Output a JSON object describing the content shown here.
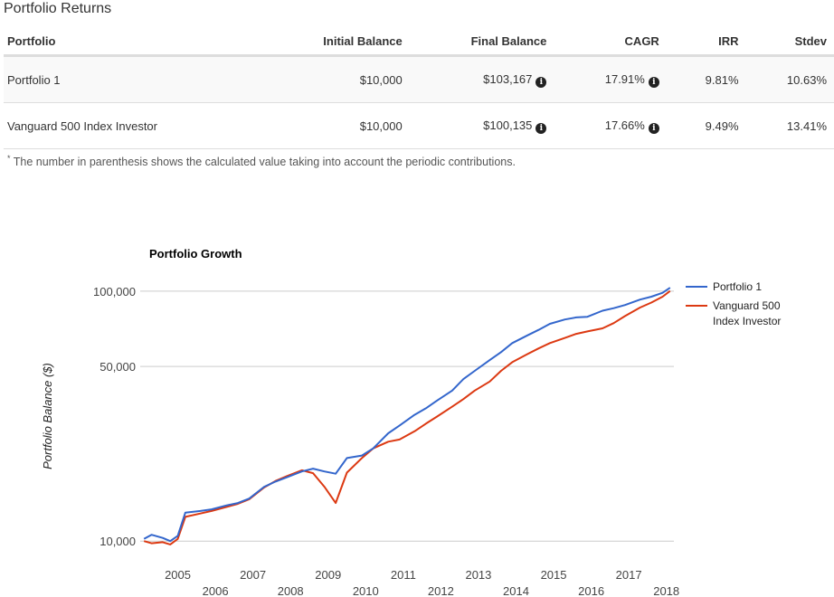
{
  "section_title": "Portfolio Returns",
  "table": {
    "headers": [
      "Portfolio",
      "Initial Balance",
      "Final Balance",
      "CAGR",
      "IRR",
      "Stdev"
    ],
    "rows": [
      {
        "portfolio": "Portfolio 1",
        "initial": "$10,000",
        "final": "$103,167",
        "cagr": "17.91%",
        "irr": "9.81%",
        "stdev": "10.63%"
      },
      {
        "portfolio": "Vanguard 500 Index Investor",
        "initial": "$10,000",
        "final": "$100,135",
        "cagr": "17.66%",
        "irr": "9.49%",
        "stdev": "13.41%"
      }
    ],
    "info_icon": "info-circle-icon"
  },
  "footnote": {
    "marker": "*",
    "text": "The number in parenthesis shows the calculated value taking into account the periodic contributions."
  },
  "chart_data": {
    "type": "line",
    "title": "Portfolio Growth",
    "ylabel": "Portfolio Balance ($)",
    "xlabel": "",
    "y_scale": "log",
    "ylim": [
      8000,
      120000
    ],
    "yticks": [
      10000,
      50000,
      100000
    ],
    "ytick_labels": [
      "10,000",
      "50,000",
      "100,000"
    ],
    "xlim": [
      2004.0,
      2018.2
    ],
    "xticks": [
      2005,
      2006,
      2007,
      2008,
      2009,
      2010,
      2011,
      2012,
      2013,
      2014,
      2015,
      2016,
      2017,
      2018
    ],
    "xtick_labels": [
      "2005",
      "2006",
      "2007",
      "2008",
      "2009",
      "2010",
      "2011",
      "2012",
      "2013",
      "2014",
      "2015",
      "2016",
      "2017",
      "2018"
    ],
    "legend_position": "right",
    "series": [
      {
        "name": "Portfolio 1",
        "color": "#3366cc",
        "x": [
          2004.1,
          2004.3,
          2004.6,
          2004.8,
          2005.0,
          2005.2,
          2005.6,
          2005.9,
          2006.3,
          2006.6,
          2006.9,
          2007.3,
          2007.6,
          2007.9,
          2008.3,
          2008.6,
          2008.9,
          2009.2,
          2009.5,
          2009.9,
          2010.2,
          2010.6,
          2010.9,
          2011.3,
          2011.6,
          2011.9,
          2012.3,
          2012.6,
          2012.9,
          2013.3,
          2013.6,
          2013.9,
          2014.3,
          2014.6,
          2014.9,
          2015.3,
          2015.6,
          2015.9,
          2016.3,
          2016.6,
          2016.9,
          2017.3,
          2017.6,
          2017.9,
          2018.1
        ],
        "y": [
          10200,
          10600,
          10300,
          10000,
          10500,
          13000,
          13200,
          13400,
          13900,
          14200,
          14800,
          16500,
          17300,
          18000,
          19000,
          19500,
          19000,
          18600,
          21500,
          22000,
          23500,
          27000,
          29000,
          32000,
          34000,
          36500,
          40000,
          44500,
          48000,
          53000,
          57000,
          62000,
          66500,
          70000,
          74000,
          77000,
          78500,
          79000,
          83500,
          85500,
          88000,
          92500,
          95000,
          98500,
          103167
        ]
      },
      {
        "name": "Vanguard 500 Index Investor",
        "color": "#dc3912",
        "x": [
          2004.1,
          2004.3,
          2004.6,
          2004.8,
          2005.0,
          2005.2,
          2005.6,
          2005.9,
          2006.3,
          2006.6,
          2006.9,
          2007.3,
          2007.6,
          2007.9,
          2008.3,
          2008.6,
          2008.9,
          2009.2,
          2009.5,
          2009.9,
          2010.2,
          2010.6,
          2010.9,
          2011.3,
          2011.6,
          2011.9,
          2012.3,
          2012.6,
          2012.9,
          2013.3,
          2013.6,
          2013.9,
          2014.3,
          2014.6,
          2014.9,
          2015.3,
          2015.6,
          2015.9,
          2016.3,
          2016.6,
          2016.9,
          2017.3,
          2017.6,
          2017.9,
          2018.1
        ],
        "y": [
          10000,
          9800,
          9900,
          9700,
          10200,
          12500,
          12900,
          13200,
          13700,
          14100,
          14700,
          16400,
          17400,
          18200,
          19200,
          18700,
          16500,
          14200,
          18800,
          21500,
          23500,
          25000,
          25500,
          27500,
          29500,
          31500,
          34500,
          37000,
          40000,
          43500,
          48000,
          52000,
          56000,
          59000,
          62000,
          65000,
          67500,
          69000,
          71000,
          74500,
          79500,
          86000,
          90000,
          95000,
          100135
        ]
      }
    ]
  }
}
